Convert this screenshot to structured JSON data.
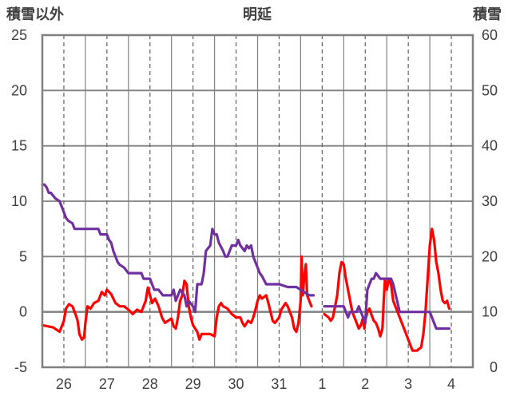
{
  "chart_data": {
    "type": "line",
    "title": "明延",
    "left_axis_label": "積雪以外",
    "right_axis_label": "積雪",
    "left_ylim": [
      -5,
      25
    ],
    "left_ticks": [
      "-5",
      "0",
      "5",
      "10",
      "15",
      "20",
      "25"
    ],
    "right_ylim": [
      0,
      60
    ],
    "right_ticks": [
      "0",
      "10",
      "20",
      "30",
      "40",
      "50",
      "60"
    ],
    "xlim": [
      0,
      10
    ],
    "categories": [
      "26",
      "27",
      "28",
      "29",
      "30",
      "31",
      "1",
      "2",
      "3",
      "4"
    ],
    "grid": true,
    "series": [
      {
        "color": "#ff0000",
        "axis": "left",
        "segments": [
          [
            [
              0.0,
              -1.2
            ],
            [
              0.25,
              -1.4
            ],
            [
              0.4,
              -1.8
            ],
            [
              0.5,
              -0.8
            ],
            [
              0.55,
              0.3
            ],
            [
              0.62,
              0.7
            ],
            [
              0.7,
              0.5
            ],
            [
              0.78,
              -0.3
            ],
            [
              0.82,
              -0.8
            ],
            [
              0.86,
              -2
            ],
            [
              0.92,
              -2.5
            ],
            [
              0.97,
              -2.3
            ],
            [
              1.0,
              -1.0
            ],
            [
              1.05,
              0.5
            ],
            [
              1.12,
              0.3
            ],
            [
              1.2,
              0.8
            ],
            [
              1.3,
              1.0
            ],
            [
              1.38,
              1.8
            ],
            [
              1.45,
              1.5
            ],
            [
              1.5,
              2.0
            ],
            [
              1.6,
              1.6
            ],
            [
              1.7,
              0.8
            ],
            [
              1.8,
              0.5
            ],
            [
              1.9,
              0.5
            ],
            [
              2.0,
              0.2
            ],
            [
              2.1,
              -0.2
            ],
            [
              2.2,
              0.2
            ],
            [
              2.3,
              0.0
            ],
            [
              2.4,
              1.0
            ],
            [
              2.45,
              2.2
            ],
            [
              2.5,
              1.5
            ],
            [
              2.55,
              0.8
            ],
            [
              2.62,
              1.2
            ],
            [
              2.7,
              0.5
            ],
            [
              2.78,
              -0.5
            ],
            [
              2.85,
              -1.0
            ],
            [
              2.92,
              -0.8
            ],
            [
              3.0,
              -0.6
            ],
            [
              3.05,
              -1.3
            ],
            [
              3.1,
              -1.5
            ],
            [
              3.15,
              -0.5
            ],
            [
              3.2,
              1.0
            ],
            [
              3.25,
              1.5
            ],
            [
              3.3,
              2.8
            ],
            [
              3.35,
              2.5
            ],
            [
              3.4,
              0.5
            ],
            [
              3.45,
              -0.5
            ],
            [
              3.5,
              -1.2
            ],
            [
              3.55,
              -1.5
            ],
            [
              3.6,
              -1.8
            ],
            [
              3.65,
              -2.5
            ],
            [
              3.7,
              -2.0
            ],
            [
              3.8,
              -2.0
            ],
            [
              3.9,
              -2.0
            ],
            [
              4.0,
              -2.2
            ],
            [
              4.05,
              -0.5
            ],
            [
              4.1,
              0.5
            ],
            [
              4.15,
              0.8
            ],
            [
              4.2,
              0.5
            ],
            [
              4.3,
              0.3
            ],
            [
              4.4,
              -0.2
            ],
            [
              4.5,
              -0.5
            ],
            [
              4.6,
              -0.5
            ],
            [
              4.65,
              -1.0
            ],
            [
              4.7,
              -1.3
            ],
            [
              4.78,
              -0.8
            ],
            [
              4.85,
              -1.0
            ],
            [
              4.9,
              -0.5
            ],
            [
              4.95,
              0.2
            ],
            [
              5.0,
              1.0
            ],
            [
              5.05,
              1.5
            ],
            [
              5.1,
              1.2
            ],
            [
              5.2,
              1.5
            ],
            [
              5.25,
              0.8
            ],
            [
              5.3,
              0.0
            ],
            [
              5.35,
              -0.8
            ],
            [
              5.4,
              -1.0
            ],
            [
              5.5,
              -0.5
            ],
            [
              5.55,
              0.2
            ],
            [
              5.6,
              0.5
            ],
            [
              5.65,
              0.8
            ],
            [
              5.7,
              0.5
            ],
            [
              5.75,
              0.0
            ],
            [
              5.8,
              -0.5
            ],
            [
              5.85,
              -1.5
            ],
            [
              5.9,
              -1.8
            ],
            [
              5.95,
              -1.0
            ],
            [
              6.0,
              1.0
            ],
            [
              6.02,
              5.0
            ],
            [
              6.05,
              1.5
            ],
            [
              6.08,
              3.0
            ],
            [
              6.12,
              4.3
            ],
            [
              6.15,
              1.5
            ],
            [
              6.2,
              1.0
            ],
            [
              6.25,
              0.5
            ]
          ],
          [
            [
              6.55,
              -0.2
            ],
            [
              6.65,
              -0.5
            ],
            [
              6.7,
              -0.8
            ],
            [
              6.75,
              -0.5
            ],
            [
              6.8,
              0.5
            ],
            [
              6.85,
              1.5
            ],
            [
              6.9,
              3.5
            ],
            [
              6.95,
              4.5
            ],
            [
              7.0,
              4.3
            ],
            [
              7.05,
              3.0
            ],
            [
              7.1,
              2.0
            ],
            [
              7.15,
              1.0
            ],
            [
              7.2,
              0.0
            ],
            [
              7.25,
              -0.5
            ],
            [
              7.3,
              -1.0
            ],
            [
              7.35,
              -1.5
            ],
            [
              7.4,
              -1.2
            ],
            [
              7.45,
              -0.5
            ],
            [
              7.48,
              -1.5
            ],
            [
              7.5,
              -0.8
            ],
            [
              7.55,
              0.0
            ],
            [
              7.6,
              0.3
            ],
            [
              7.65,
              -0.3
            ],
            [
              7.7,
              -0.8
            ],
            [
              7.75,
              -1.0
            ],
            [
              7.8,
              -1.5
            ],
            [
              7.85,
              -2.2
            ],
            [
              7.9,
              -1.5
            ],
            [
              7.93,
              1.0
            ],
            [
              7.96,
              3.0
            ],
            [
              8.0,
              2.0
            ],
            [
              8.05,
              3.0
            ],
            [
              8.1,
              2.5
            ],
            [
              8.15,
              1.0
            ],
            [
              8.2,
              0.5
            ],
            [
              8.25,
              0.0
            ],
            [
              8.3,
              -0.5
            ],
            [
              8.35,
              -1.0
            ],
            [
              8.4,
              -1.5
            ],
            [
              8.45,
              -2.0
            ],
            [
              8.5,
              -2.5
            ],
            [
              8.55,
              -3.0
            ],
            [
              8.6,
              -3.5
            ],
            [
              8.7,
              -3.5
            ],
            [
              8.8,
              -3.2
            ],
            [
              8.85,
              -2.0
            ],
            [
              8.9,
              0.0
            ],
            [
              8.95,
              3.0
            ],
            [
              9.0,
              6.0
            ],
            [
              9.05,
              7.5
            ],
            [
              9.1,
              6.5
            ],
            [
              9.15,
              4.5
            ],
            [
              9.2,
              3.5
            ],
            [
              9.25,
              2.0
            ],
            [
              9.3,
              1.0
            ],
            [
              9.35,
              0.8
            ],
            [
              9.4,
              1.0
            ],
            [
              9.45,
              0.3
            ]
          ]
        ]
      },
      {
        "color": "#7030a0",
        "axis": "right",
        "segments": [
          [
            [
              0.0,
              33.0
            ],
            [
              0.05,
              33.0
            ],
            [
              0.1,
              32.5
            ],
            [
              0.15,
              31.5
            ],
            [
              0.2,
              31.5
            ],
            [
              0.25,
              31.0
            ],
            [
              0.3,
              30.5
            ],
            [
              0.4,
              30.0
            ],
            [
              0.45,
              29.0
            ],
            [
              0.5,
              28.0
            ],
            [
              0.55,
              27.0
            ],
            [
              0.6,
              26.5
            ],
            [
              0.7,
              26.0
            ],
            [
              0.75,
              25.0
            ],
            [
              1.3,
              25.0
            ],
            [
              1.35,
              24.0
            ],
            [
              1.5,
              24.0
            ],
            [
              1.55,
              23.0
            ],
            [
              1.6,
              22.5
            ],
            [
              1.65,
              21.0
            ],
            [
              1.7,
              20.0
            ],
            [
              1.75,
              19.0
            ],
            [
              1.8,
              18.5
            ],
            [
              1.9,
              18.0
            ],
            [
              2.0,
              17.0
            ],
            [
              2.3,
              17.0
            ],
            [
              2.35,
              16.0
            ],
            [
              2.5,
              16.0
            ],
            [
              2.55,
              15.0
            ],
            [
              2.6,
              14.0
            ],
            [
              2.7,
              14.0
            ],
            [
              2.8,
              13.0
            ],
            [
              3.0,
              13.0
            ],
            [
              3.05,
              14.0
            ],
            [
              3.1,
              12.0
            ],
            [
              3.15,
              13.0
            ],
            [
              3.2,
              14.0
            ],
            [
              3.3,
              13.0
            ],
            [
              3.35,
              11.0
            ],
            [
              3.4,
              12.0
            ],
            [
              3.5,
              11.0
            ],
            [
              3.55,
              10.0
            ],
            [
              3.6,
              15.0
            ],
            [
              3.7,
              15.0
            ],
            [
              3.75,
              17.0
            ],
            [
              3.8,
              21.0
            ],
            [
              3.85,
              21.5
            ],
            [
              3.9,
              22.0
            ],
            [
              3.95,
              25.0
            ],
            [
              4.0,
              24.0
            ],
            [
              4.05,
              24.0
            ],
            [
              4.1,
              22.5
            ],
            [
              4.2,
              21.0
            ],
            [
              4.25,
              20.0
            ],
            [
              4.3,
              20.0
            ],
            [
              4.35,
              21.0
            ],
            [
              4.4,
              22.0
            ],
            [
              4.5,
              22.0
            ],
            [
              4.55,
              23.0
            ],
            [
              4.6,
              22.0
            ],
            [
              4.7,
              21.0
            ],
            [
              4.75,
              22.0
            ],
            [
              4.8,
              21.5
            ],
            [
              4.85,
              22.0
            ],
            [
              4.9,
              20.0
            ],
            [
              4.95,
              19.0
            ],
            [
              5.0,
              18.0
            ],
            [
              5.05,
              17.0
            ],
            [
              5.1,
              16.5
            ],
            [
              5.2,
              15.0
            ],
            [
              5.3,
              15.0
            ],
            [
              5.5,
              15.0
            ],
            [
              5.7,
              14.5
            ],
            [
              5.9,
              14.5
            ],
            [
              6.0,
              14.0
            ],
            [
              6.1,
              13.5
            ],
            [
              6.2,
              13.0
            ],
            [
              6.3,
              13.0
            ]
          ],
          [
            [
              6.55,
              11.0
            ],
            [
              7.0,
              11.0
            ],
            [
              7.05,
              10.0
            ],
            [
              7.1,
              9.0
            ],
            [
              7.15,
              10.0
            ],
            [
              7.3,
              10.0
            ],
            [
              7.35,
              11.0
            ],
            [
              7.4,
              10.0
            ],
            [
              7.5,
              8.0
            ],
            [
              7.55,
              14.0
            ],
            [
              7.65,
              16.0
            ],
            [
              7.7,
              16.0
            ],
            [
              7.75,
              17.0
            ],
            [
              7.85,
              16.0
            ],
            [
              8.0,
              16.0
            ],
            [
              8.1,
              16.0
            ],
            [
              8.15,
              15.0
            ],
            [
              8.3,
              10.0
            ],
            [
              8.4,
              10.0
            ],
            [
              9.0,
              10.0
            ],
            [
              9.05,
              9.0
            ],
            [
              9.1,
              8.0
            ],
            [
              9.15,
              7.0
            ],
            [
              9.4,
              7.0
            ],
            [
              9.45,
              7.0
            ]
          ]
        ]
      }
    ]
  }
}
